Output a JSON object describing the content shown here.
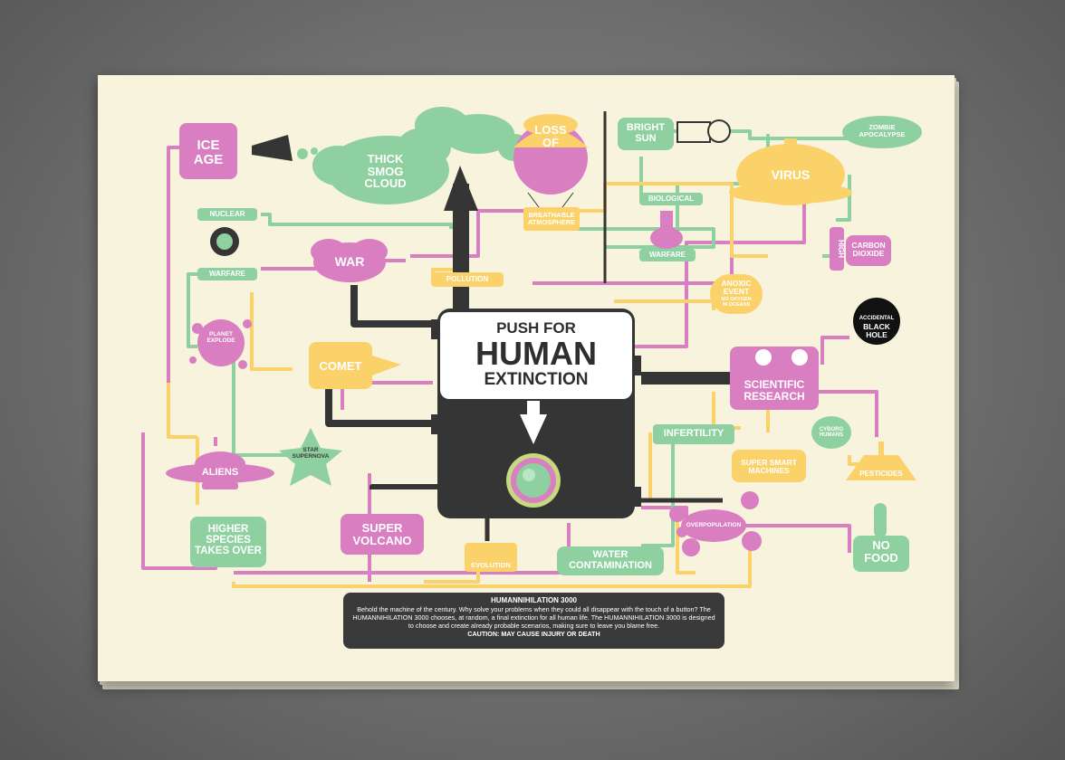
{
  "machine": {
    "label_top": "PUSH FOR",
    "label_mid": "HUMAN",
    "label_bot": "EXTINCTION"
  },
  "nodes": {
    "ice_age": "ICE\nAGE",
    "thick_smog_cloud": "THICK\nSMOG\nCLOUD",
    "loss_of": "LOSS\nOF",
    "breathable_atmosphere": "BREATHABLE\nATMOSPHERE",
    "bright_sun": "BRIGHT\nSUN",
    "zombie_apocalypse": "ZOMBIE\nAPOCALYPSE",
    "virus": "VIRUS",
    "biological": "BIOLOGICAL",
    "warfare_bio": "WARFARE",
    "nuclear": "NUCLEAR",
    "warfare_nuclear": "WARFARE",
    "war": "WAR",
    "pollution": "POLLUTION",
    "high": "HIGH",
    "carbon_dioxide": "CARBON\nDIOXIDE",
    "anoxic_event": "ANOXIC\nEVENT",
    "anoxic_sub": "NO OXYGEN\nIN OCEANS",
    "accidental_black_hole_1": "ACCIDENTAL",
    "accidental_black_hole_2": "BLACK\nHOLE",
    "planet_explode": "PLANET\nEXPLODE",
    "comet": "COMET",
    "scientific_research": "SCIENTIFIC\nRESEARCH",
    "infertility": "INFERTILITY",
    "cyborg_humans": "CYBORG\nHUMANS",
    "super_smart_machines": "SUPER SMART\nMACHINES",
    "pesticides": "PESTICIDES",
    "star_supernova": "STAR\nSUPERNOVA",
    "aliens": "ALIENS",
    "higher_species": "HIGHER\nSPECIES\nTAKES OVER",
    "super_volcano": "SUPER\nVOLCANO",
    "evolution": "EVOLUTION",
    "water_contamination": "WATER\nCONTAMINATION",
    "overpopulation": "OVERPOPULATION",
    "no_food": "NO\nFOOD"
  },
  "caption": {
    "title": "HUMANNIHILATION 3000",
    "body": "Behold the machine of the century. Why solve your problems when they could all disappear with the touch of a button? The HUMANNIHILATION 3000 chooses, at random, a final extinction for all human life. The HUMANNIHILATION 3000 is designed to choose and create already probable scenarios, making sure to leave you blame free.",
    "caution": "CAUTION: MAY CAUSE INJURY OR DEATH"
  },
  "colors": {
    "pink": "#d97ec0",
    "green": "#8fd0a0",
    "yellow": "#fbd26a",
    "dark": "#353535",
    "paper": "#f7f3dc"
  }
}
